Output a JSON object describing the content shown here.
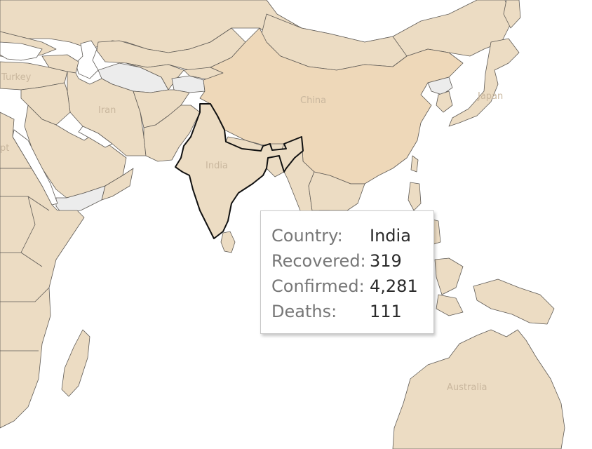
{
  "map": {
    "labels": {
      "turkey": "Turkey",
      "iran": "Iran",
      "china": "China",
      "india": "India",
      "japan": "Japan",
      "egypt": "pt",
      "australia": "Australia"
    },
    "colors": {
      "land": "#ecdcc3",
      "highlight_land": "#eed8b9",
      "no_data": "#ececec",
      "selected_outline": "#111111"
    },
    "selected_country": "India"
  },
  "tooltip": {
    "rows": [
      {
        "key": "Country:",
        "value": "India"
      },
      {
        "key": "Recovered:",
        "value": "319"
      },
      {
        "key": "Confirmed:",
        "value": "4,281"
      },
      {
        "key": "Deaths:",
        "value": "111"
      }
    ]
  }
}
